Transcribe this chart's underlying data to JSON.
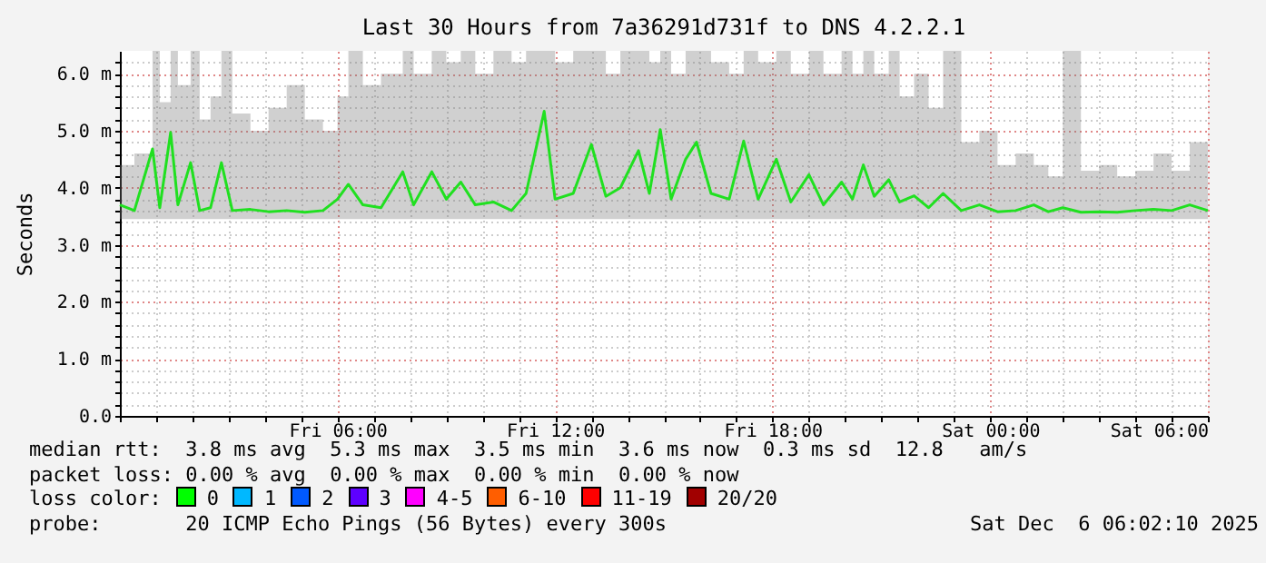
{
  "chart_data": {
    "type": "line",
    "title": "Last 30 Hours from 7a36291d731f to DNS 4.2.2.1",
    "ylabel": "Seconds",
    "xlim": [
      "2025-12-05T00:00",
      "2025-12-06T06:00"
    ],
    "ylim": [
      0,
      6.4
    ],
    "xticks": [
      {
        "value": "2025-12-05T00:00",
        "label": null
      },
      {
        "value": "2025-12-05T01:00",
        "label": null
      },
      {
        "value": "2025-12-05T02:00",
        "label": null
      },
      {
        "value": "2025-12-05T03:00",
        "label": null
      },
      {
        "value": "2025-12-05T04:00",
        "label": null
      },
      {
        "value": "2025-12-05T05:00",
        "label": null
      },
      {
        "value": "2025-12-05T06:00",
        "label": "Fri 06:00"
      },
      {
        "value": "2025-12-05T07:00",
        "label": null
      },
      {
        "value": "2025-12-05T08:00",
        "label": null
      },
      {
        "value": "2025-12-05T09:00",
        "label": null
      },
      {
        "value": "2025-12-05T10:00",
        "label": null
      },
      {
        "value": "2025-12-05T11:00",
        "label": null
      },
      {
        "value": "2025-12-05T12:00",
        "label": "Fri 12:00"
      },
      {
        "value": "2025-12-05T13:00",
        "label": null
      },
      {
        "value": "2025-12-05T14:00",
        "label": null
      },
      {
        "value": "2025-12-05T15:00",
        "label": null
      },
      {
        "value": "2025-12-05T16:00",
        "label": null
      },
      {
        "value": "2025-12-05T17:00",
        "label": null
      },
      {
        "value": "2025-12-05T18:00",
        "label": "Fri 18:00"
      },
      {
        "value": "2025-12-05T19:00",
        "label": null
      },
      {
        "value": "2025-12-05T20:00",
        "label": null
      },
      {
        "value": "2025-12-05T21:00",
        "label": null
      },
      {
        "value": "2025-12-05T22:00",
        "label": null
      },
      {
        "value": "2025-12-05T23:00",
        "label": null
      },
      {
        "value": "2025-12-06T00:00",
        "label": "Sat 00:00"
      },
      {
        "value": "2025-12-06T01:00",
        "label": null
      },
      {
        "value": "2025-12-06T02:00",
        "label": null
      },
      {
        "value": "2025-12-06T03:00",
        "label": null
      },
      {
        "value": "2025-12-06T04:00",
        "label": null
      },
      {
        "value": "2025-12-06T05:00",
        "label": null
      },
      {
        "value": "2025-12-06T06:00",
        "label": "Sat 06:00"
      }
    ],
    "yticks": [
      {
        "value": 0,
        "label": "0.0"
      },
      {
        "value": 0.2,
        "label": null
      },
      {
        "value": 0.4,
        "label": null
      },
      {
        "value": 0.6,
        "label": null
      },
      {
        "value": 0.8,
        "label": null
      },
      {
        "value": 1,
        "label": "1.0 m"
      },
      {
        "value": 1.2,
        "label": null
      },
      {
        "value": 1.4,
        "label": null
      },
      {
        "value": 1.6,
        "label": null
      },
      {
        "value": 1.8,
        "label": null
      },
      {
        "value": 2,
        "label": "2.0 m"
      },
      {
        "value": 2.2,
        "label": null
      },
      {
        "value": 2.4,
        "label": null
      },
      {
        "value": 2.6,
        "label": null
      },
      {
        "value": 2.8,
        "label": null
      },
      {
        "value": 3,
        "label": "3.0 m"
      },
      {
        "value": 3.2,
        "label": null
      },
      {
        "value": 3.4,
        "label": null
      },
      {
        "value": 3.6,
        "label": null
      },
      {
        "value": 3.8,
        "label": null
      },
      {
        "value": 4,
        "label": "4.0 m"
      },
      {
        "value": 4.2,
        "label": null
      },
      {
        "value": 4.4,
        "label": null
      },
      {
        "value": 4.6,
        "label": null
      },
      {
        "value": 4.8,
        "label": null
      },
      {
        "value": 5,
        "label": "5.0 m"
      },
      {
        "value": 5.2,
        "label": null
      },
      {
        "value": 5.4,
        "label": null
      },
      {
        "value": 5.6,
        "label": null
      },
      {
        "value": 5.8,
        "label": null
      },
      {
        "value": 6,
        "label": "6.0 m"
      },
      {
        "value": 6.2,
        "label": null
      }
    ],
    "grid": true,
    "x": [
      "2025-12-05T00:00",
      "2025-12-05T00:24",
      "2025-12-05T00:54",
      "2025-12-05T01:06",
      "2025-12-05T01:24",
      "2025-12-05T01:36",
      "2025-12-05T01:57",
      "2025-12-05T02:12",
      "2025-12-05T02:30",
      "2025-12-05T02:48",
      "2025-12-05T03:06",
      "2025-12-05T03:36",
      "2025-12-05T04:06",
      "2025-12-05T04:36",
      "2025-12-05T05:06",
      "2025-12-05T05:36",
      "2025-12-05T06:00",
      "2025-12-05T06:18",
      "2025-12-05T06:42",
      "2025-12-05T07:12",
      "2025-12-05T07:48",
      "2025-12-05T08:06",
      "2025-12-05T08:36",
      "2025-12-05T09:00",
      "2025-12-05T09:24",
      "2025-12-05T09:48",
      "2025-12-05T10:18",
      "2025-12-05T10:48",
      "2025-12-05T11:12",
      "2025-12-05T11:42",
      "2025-12-05T12:00",
      "2025-12-05T12:30",
      "2025-12-05T13:00",
      "2025-12-05T13:24",
      "2025-12-05T13:48",
      "2025-12-05T14:18",
      "2025-12-05T14:36",
      "2025-12-05T14:54",
      "2025-12-05T15:12",
      "2025-12-05T15:36",
      "2025-12-05T15:54",
      "2025-12-05T16:18",
      "2025-12-05T16:48",
      "2025-12-05T17:12",
      "2025-12-05T17:36",
      "2025-12-05T18:06",
      "2025-12-05T18:30",
      "2025-12-05T19:00",
      "2025-12-05T19:24",
      "2025-12-05T19:54",
      "2025-12-05T20:12",
      "2025-12-05T20:30",
      "2025-12-05T20:48",
      "2025-12-05T21:12",
      "2025-12-05T21:30",
      "2025-12-05T21:54",
      "2025-12-05T22:18",
      "2025-12-05T22:42",
      "2025-12-05T23:12",
      "2025-12-05T23:42",
      "2025-12-06T00:12",
      "2025-12-06T00:42",
      "2025-12-06T01:12",
      "2025-12-06T01:36",
      "2025-12-06T02:00",
      "2025-12-06T02:30",
      "2025-12-06T03:00",
      "2025-12-06T03:30",
      "2025-12-06T04:00",
      "2025-12-06T04:30",
      "2025-12-06T05:00",
      "2025-12-06T05:30",
      "2025-12-06T06:00"
    ],
    "series": [
      {
        "color": "#20e020",
        "values": [
          3.7,
          3.6,
          4.68,
          3.65,
          4.97,
          3.7,
          4.44,
          3.6,
          3.65,
          4.44,
          3.6,
          3.62,
          3.58,
          3.6,
          3.57,
          3.6,
          3.8,
          4.06,
          3.7,
          3.65,
          4.28,
          3.7,
          4.28,
          3.8,
          4.1,
          3.7,
          3.75,
          3.6,
          3.9,
          5.34,
          3.8,
          3.9,
          4.76,
          3.85,
          4.0,
          4.65,
          3.9,
          5.02,
          3.8,
          4.5,
          4.8,
          3.9,
          3.8,
          4.82,
          3.8,
          4.5,
          3.75,
          4.23,
          3.7,
          4.1,
          3.8,
          4.4,
          3.85,
          4.14,
          3.75,
          3.86,
          3.65,
          3.9,
          3.6,
          3.7,
          3.58,
          3.6,
          3.7,
          3.58,
          3.65,
          3.57,
          3.58,
          3.57,
          3.6,
          3.62,
          3.6,
          3.7,
          3.6
        ],
        "lower": [
          3.45,
          3.45,
          3.45,
          3.45,
          3.45,
          3.45,
          3.45,
          3.45,
          3.45,
          3.45,
          3.45,
          3.45,
          3.45,
          3.45,
          3.45,
          3.45,
          3.45,
          3.45,
          3.45,
          3.45,
          3.45,
          3.45,
          3.45,
          3.45,
          3.45,
          3.45,
          3.45,
          3.45,
          3.45,
          3.45,
          3.45,
          3.45,
          3.45,
          3.45,
          3.45,
          3.45,
          3.45,
          3.45,
          3.45,
          3.45,
          3.45,
          3.45,
          3.45,
          3.45,
          3.45,
          3.45,
          3.45,
          3.45,
          3.45,
          3.45,
          3.45,
          3.45,
          3.45,
          3.45,
          3.45,
          3.45,
          3.45,
          3.45,
          3.45,
          3.45,
          3.45,
          3.45,
          3.45,
          3.45,
          3.45,
          3.45,
          3.45,
          3.45,
          3.45,
          3.45,
          3.45,
          3.45,
          3.45
        ],
        "upper": [
          4.4,
          4.6,
          6.4,
          5.5,
          6.4,
          5.8,
          6.4,
          5.2,
          5.6,
          6.4,
          5.3,
          5.0,
          5.4,
          5.8,
          5.2,
          5.0,
          5.6,
          6.4,
          5.8,
          6.0,
          6.4,
          6.0,
          6.4,
          6.2,
          6.4,
          6.0,
          6.4,
          6.2,
          6.4,
          6.4,
          6.2,
          6.4,
          6.4,
          6.0,
          6.4,
          6.4,
          6.2,
          6.4,
          6.0,
          6.4,
          6.4,
          6.2,
          6.0,
          6.4,
          6.2,
          6.4,
          6.0,
          6.4,
          6.0,
          6.4,
          6.0,
          6.4,
          6.0,
          6.4,
          5.6,
          6.0,
          5.4,
          6.4,
          4.8,
          5.0,
          4.4,
          4.6,
          4.4,
          4.2,
          6.4,
          4.3,
          4.4,
          4.2,
          4.3,
          4.6,
          4.3,
          4.8,
          4.2
        ]
      }
    ],
    "annotations": [
      "median rtt:  3.8 ms avg  5.3 ms max  3.5 ms min  3.6 ms now  0.3 ms sd  12.8   am/s",
      "packet loss: 0.00 % avg  0.00 % max  0.00 % min  0.00 % now",
      "loss color:",
      "0",
      "1",
      "2",
      "3",
      "4-5",
      "6-10",
      "11-19",
      "20/20",
      "probe:       20 ICMP Echo Pings (56 Bytes) every 300s",
      "Sat Dec  6 06:02:10 2025"
    ]
  }
}
